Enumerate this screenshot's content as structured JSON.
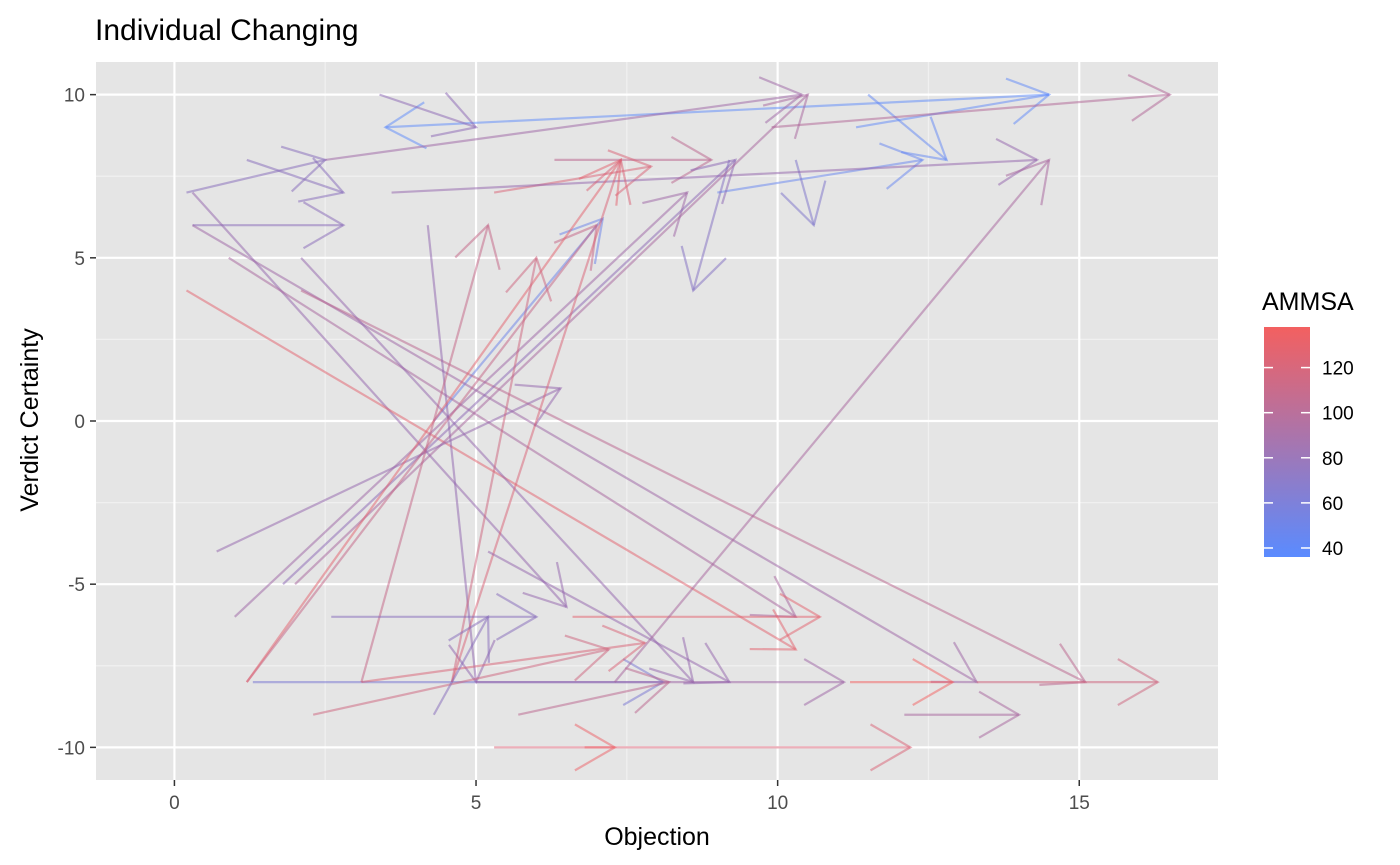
{
  "chart_data": {
    "type": "scatter",
    "title": "Individual Changing",
    "xlabel": "Objection",
    "ylabel": "Verdict Certainty",
    "xlim": [
      -1.3,
      17.3
    ],
    "ylim": [
      -11,
      11
    ],
    "x_ticks": [
      0,
      5,
      10,
      15
    ],
    "y_ticks": [
      10,
      5,
      0,
      -5,
      -10
    ],
    "x_tick_labels": [
      "0",
      "5",
      "10",
      "15"
    ],
    "y_tick_labels": [
      "10",
      "5",
      "0",
      "-5",
      "-10"
    ],
    "grid": true,
    "legend_position": "right",
    "legend": {
      "title": "AMMSA",
      "range": [
        36,
        138
      ],
      "ticks": [
        40,
        60,
        80,
        100,
        120
      ],
      "tick_labels": [
        "40",
        "60",
        "80",
        "100",
        "120"
      ],
      "color_low": "#5a8bff",
      "color_high": "#f36060"
    },
    "colors": {
      "panel": "#e5e5e5",
      "grid_major": "#ffffff",
      "grid_minor": "#f0f0f0"
    },
    "segments": [
      {
        "x": 14.5,
        "y": 10,
        "xend": 3.5,
        "yend": 9,
        "ammsa": 38
      },
      {
        "x": 11.3,
        "y": 9,
        "xend": 14.5,
        "yend": 10,
        "ammsa": 40
      },
      {
        "x": 11.5,
        "y": 10,
        "xend": 12.8,
        "yend": 8,
        "ammsa": 42
      },
      {
        "x": 9,
        "y": 7,
        "xend": 12.4,
        "yend": 8,
        "ammsa": 45
      },
      {
        "x": 4.3,
        "y": 0,
        "xend": 7.1,
        "yend": 6.2,
        "ammsa": 50
      },
      {
        "x": 10.3,
        "y": 8,
        "xend": 10.6,
        "yend": 6,
        "ammsa": 70
      },
      {
        "x": 9.2,
        "y": 8,
        "xend": 8.6,
        "yend": 4,
        "ammsa": 75
      },
      {
        "x": 1.3,
        "y": -8,
        "xend": 8.1,
        "yend": -8,
        "ammsa": 65
      },
      {
        "x": 0.2,
        "y": 7,
        "xend": 2.5,
        "yend": 8,
        "ammsa": 80
      },
      {
        "x": 2.5,
        "y": 8,
        "xend": 10.4,
        "yend": 10,
        "ammsa": 95
      },
      {
        "x": 3.4,
        "y": 10,
        "xend": 5,
        "yend": 9,
        "ammsa": 85
      },
      {
        "x": 1.2,
        "y": 8,
        "xend": 2.8,
        "yend": 7,
        "ammsa": 80
      },
      {
        "x": 0.3,
        "y": 6,
        "xend": 2.8,
        "yend": 6,
        "ammsa": 82
      },
      {
        "x": 6.3,
        "y": 8,
        "xend": 8.9,
        "yend": 8,
        "ammsa": 110
      },
      {
        "x": 5.3,
        "y": 7,
        "xend": 7.9,
        "yend": 7.8,
        "ammsa": 125
      },
      {
        "x": 3.6,
        "y": 7,
        "xend": 14.3,
        "yend": 8,
        "ammsa": 90
      },
      {
        "x": 0.3,
        "y": 7,
        "xend": 6.5,
        "yend": -5.7,
        "ammsa": 90
      },
      {
        "x": 0.3,
        "y": 6,
        "xend": 13.3,
        "yend": -8,
        "ammsa": 95
      },
      {
        "x": 0.9,
        "y": 5,
        "xend": 10.3,
        "yend": -6,
        "ammsa": 100
      },
      {
        "x": 0.2,
        "y": 4,
        "xend": 10.3,
        "yend": -7,
        "ammsa": 130
      },
      {
        "x": 2.1,
        "y": 4,
        "xend": 15.1,
        "yend": -8,
        "ammsa": 110
      },
      {
        "x": 2.1,
        "y": 5,
        "xend": 8.6,
        "yend": -8,
        "ammsa": 90
      },
      {
        "x": 4.2,
        "y": 6,
        "xend": 5,
        "yend": -8,
        "ammsa": 88
      },
      {
        "x": 1,
        "y": -6,
        "xend": 8.5,
        "yend": 7,
        "ammsa": 95
      },
      {
        "x": 1.8,
        "y": -5,
        "xend": 9.3,
        "yend": 8,
        "ammsa": 85
      },
      {
        "x": 2,
        "y": -5,
        "xend": 10.5,
        "yend": 10,
        "ammsa": 100
      },
      {
        "x": 0.7,
        "y": -4,
        "xend": 6.4,
        "yend": 1,
        "ammsa": 90
      },
      {
        "x": 1.2,
        "y": -8,
        "xend": 7,
        "yend": 6,
        "ammsa": 115
      },
      {
        "x": 1.2,
        "y": -8,
        "xend": 7.4,
        "yend": 8,
        "ammsa": 130
      },
      {
        "x": 3.1,
        "y": -8,
        "xend": 5.2,
        "yend": 6,
        "ammsa": 115
      },
      {
        "x": 4.6,
        "y": -8,
        "xend": 6,
        "yend": 5,
        "ammsa": 120
      },
      {
        "x": 4.6,
        "y": -8,
        "xend": 7.4,
        "yend": 8,
        "ammsa": 125
      },
      {
        "x": 3.1,
        "y": -8,
        "xend": 7.8,
        "yend": -6.8,
        "ammsa": 125
      },
      {
        "x": 2.3,
        "y": -9,
        "xend": 7.2,
        "yend": -7,
        "ammsa": 120
      },
      {
        "x": 2.6,
        "y": -6,
        "xend": 6,
        "yend": -6,
        "ammsa": 80
      },
      {
        "x": 5,
        "y": -8,
        "xend": 11.1,
        "yend": -8,
        "ammsa": 95
      },
      {
        "x": 5.3,
        "y": -10,
        "xend": 12.2,
        "yend": -10,
        "ammsa": 125
      },
      {
        "x": 6.6,
        "y": -6,
        "xend": 10.7,
        "yend": -6,
        "ammsa": 130
      },
      {
        "x": 11.2,
        "y": -8,
        "xend": 12.9,
        "yend": -8,
        "ammsa": 138
      },
      {
        "x": 13.3,
        "y": -8,
        "xend": 16.3,
        "yend": -8,
        "ammsa": 120
      },
      {
        "x": 7.3,
        "y": -8,
        "xend": 14.5,
        "yend": 8,
        "ammsa": 100
      },
      {
        "x": 5.2,
        "y": -4,
        "xend": 9.2,
        "yend": -8,
        "ammsa": 90
      },
      {
        "x": 5.7,
        "y": -9,
        "xend": 8.2,
        "yend": -8,
        "ammsa": 110
      },
      {
        "x": 4.3,
        "y": -9,
        "xend": 5.2,
        "yend": -6,
        "ammsa": 80
      },
      {
        "x": 9.9,
        "y": 9,
        "xend": 16.5,
        "yend": 10,
        "ammsa": 105
      },
      {
        "x": 6.8,
        "y": -10,
        "xend": 7.3,
        "yend": -10,
        "ammsa": 135
      },
      {
        "x": 12.1,
        "y": -9,
        "xend": 14,
        "yend": -9,
        "ammsa": 100
      }
    ]
  }
}
